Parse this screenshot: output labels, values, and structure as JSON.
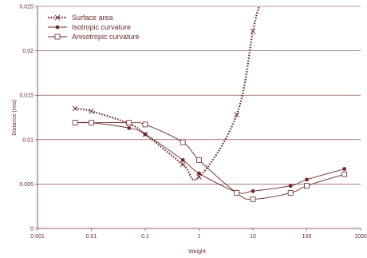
{
  "chart_data": {
    "type": "line",
    "xlabel": "Weight",
    "ylabel": "Distance (rms)",
    "x_scale": "log",
    "xlim": [
      0.001,
      1000
    ],
    "ylim": [
      0,
      0.025
    ],
    "x_ticks": [
      "0.001",
      "0.01",
      "0.1",
      "1",
      "10",
      "100",
      "1000"
    ],
    "x_tick_values": [
      0.001,
      0.01,
      0.1,
      1,
      10,
      100,
      1000
    ],
    "y_ticks": [
      "0",
      "0.005",
      "0.01",
      "0.015",
      "0.02",
      "0.025"
    ],
    "y_tick_values": [
      0,
      0.005,
      0.01,
      0.015,
      0.02,
      0.025
    ],
    "grid": "horizontal",
    "legend_position": "top-left",
    "series": [
      {
        "name": "Surface area",
        "marker": "x",
        "style": "dotted",
        "color": "#6d2a2a",
        "x": [
          0.005,
          0.01,
          0.05,
          0.1,
          0.5,
          1,
          5,
          10,
          13
        ],
        "y": [
          0.0135,
          0.0132,
          0.0118,
          0.0106,
          0.0072,
          0.0058,
          0.0128,
          0.0222,
          0.025
        ]
      },
      {
        "name": "Isotropic curvature",
        "marker": "dot",
        "style": "solid",
        "color": "#6d2a2a",
        "x": [
          0.005,
          0.01,
          0.05,
          0.1,
          0.5,
          1,
          5,
          10,
          50,
          100,
          500
        ],
        "y": [
          0.0119,
          0.0119,
          0.0113,
          0.0106,
          0.0077,
          0.0062,
          0.0041,
          0.0042,
          0.0048,
          0.0055,
          0.0067
        ]
      },
      {
        "name": "Anisotropic curvature",
        "marker": "square",
        "style": "solid",
        "color": "#6d2a2a",
        "x": [
          0.005,
          0.01,
          0.05,
          0.1,
          0.5,
          1,
          5,
          10,
          50,
          100,
          500
        ],
        "y": [
          0.0119,
          0.0119,
          0.0119,
          0.0117,
          0.0097,
          0.0077,
          0.004,
          0.0033,
          0.004,
          0.0048,
          0.0061
        ]
      }
    ]
  }
}
